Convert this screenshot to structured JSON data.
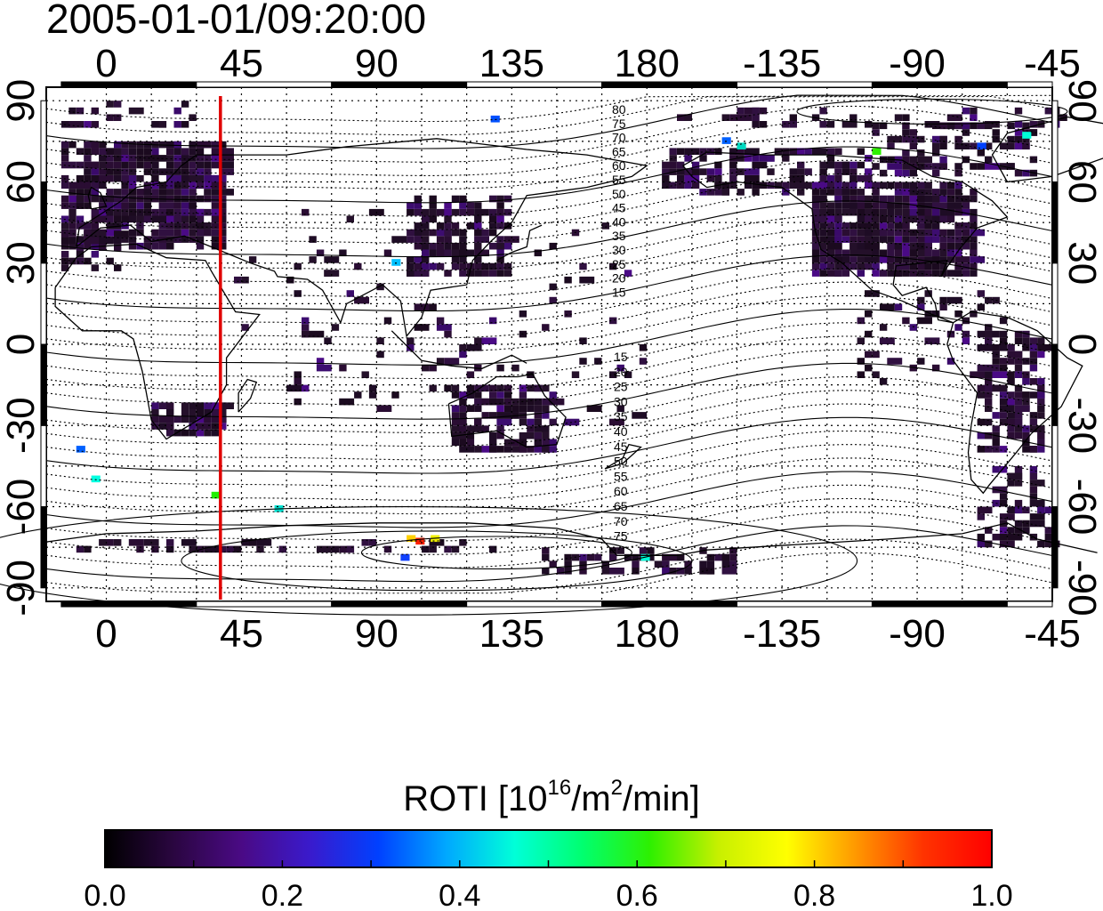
{
  "title": "2005-01-01/09:20:00",
  "colorbar": {
    "label_main": "ROTI  [10",
    "label_exp1": "16",
    "label_mid": "/m",
    "label_exp2": "2",
    "label_end": "/min]",
    "ticks": [
      "0.0",
      "0.2",
      "0.4",
      "0.6",
      "0.8",
      "1.0"
    ],
    "colors": [
      "#000000",
      "#2a0640",
      "#4a0a85",
      "#3a1acc",
      "#0040ff",
      "#00a8ff",
      "#00ffd8",
      "#00ff70",
      "#2ef000",
      "#c8f000",
      "#ffff00",
      "#ff9900",
      "#ff3300",
      "#ff0000"
    ]
  },
  "map": {
    "x_ticks_top": [
      "0",
      "45",
      "90",
      "135",
      "180",
      "-135",
      "-90",
      "-45"
    ],
    "x_ticks_bottom": [
      "0",
      "45",
      "90",
      "135",
      "180",
      "-135",
      "-90",
      "-45"
    ],
    "y_ticks_left": [
      "90",
      "60",
      "30",
      "0",
      "-30",
      "-60",
      "-90"
    ],
    "y_ticks_right": [
      "90",
      "60",
      "30",
      "0",
      "-30",
      "-60",
      "-90"
    ],
    "lon_range": [
      -20,
      315
    ],
    "lat_range": [
      -95,
      95
    ],
    "marker_longitude": 38,
    "marker_color": "#e00000",
    "contour_labels_north": [
      "80",
      "75",
      "70",
      "65",
      "60",
      "55",
      "50",
      "45",
      "40",
      "35",
      "30",
      "25",
      "20",
      "15"
    ],
    "contour_labels_south": [
      "15",
      "20",
      "25",
      "30",
      "35",
      "40",
      "45",
      "50",
      "55",
      "60",
      "65",
      "70",
      "75"
    ]
  }
}
